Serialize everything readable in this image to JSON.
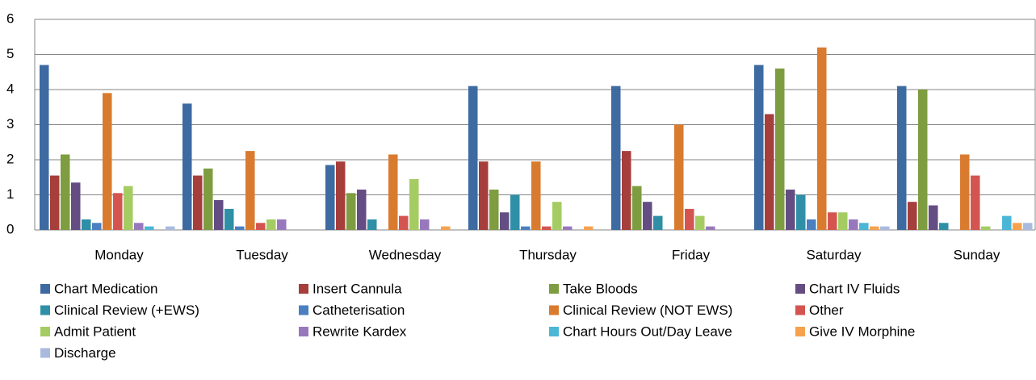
{
  "chart_data": {
    "type": "bar",
    "categories": [
      "Monday",
      "Tuesday",
      "Wednesday",
      "Thursday",
      "Friday",
      "Saturday",
      "Sunday"
    ],
    "series": [
      {
        "name": "Chart Medication",
        "color": "#3d6aa1",
        "values": [
          4.7,
          3.6,
          1.85,
          4.1,
          4.1,
          4.7,
          4.1
        ]
      },
      {
        "name": "Insert Cannula",
        "color": "#a63e3b",
        "values": [
          1.55,
          1.55,
          1.95,
          1.95,
          2.25,
          3.3,
          0.8
        ]
      },
      {
        "name": "Take Bloods",
        "color": "#7e9d40",
        "values": [
          2.15,
          1.75,
          1.05,
          1.15,
          1.25,
          4.6,
          4.0
        ]
      },
      {
        "name": "Chart IV Fluids",
        "color": "#644d83",
        "values": [
          1.35,
          0.85,
          1.15,
          0.5,
          0.8,
          1.15,
          0.7
        ]
      },
      {
        "name": "Clinical Review (+EWS)",
        "color": "#2e8fa7",
        "values": [
          0.3,
          0.6,
          0.3,
          1.0,
          0.4,
          1.0,
          0.2
        ]
      },
      {
        "name": "Catheterisation",
        "color": "#4a7fc0",
        "values": [
          0.2,
          0.1,
          0,
          0.1,
          0,
          0.3,
          0
        ]
      },
      {
        "name": "Clinical Review (NOT EWS)",
        "color": "#d97b2f",
        "values": [
          3.9,
          2.25,
          2.15,
          1.95,
          3.0,
          5.2,
          2.15
        ]
      },
      {
        "name": "Other",
        "color": "#d45450",
        "values": [
          1.05,
          0.2,
          0.4,
          0.1,
          0.6,
          0.5,
          1.55
        ]
      },
      {
        "name": "Admit Patient",
        "color": "#a5cc62",
        "values": [
          1.25,
          0.3,
          1.45,
          0.8,
          0.4,
          0.5,
          0.1
        ]
      },
      {
        "name": "Rewrite Kardex",
        "color": "#9878bd",
        "values": [
          0.2,
          0.3,
          0.3,
          0.1,
          0.1,
          0.3,
          0
        ]
      },
      {
        "name": "Chart Hours Out/Day Leave",
        "color": "#4bb6d6",
        "values": [
          0.1,
          0,
          0,
          0,
          0,
          0.2,
          0.4
        ]
      },
      {
        "name": "Give IV Morphine",
        "color": "#f7a14f",
        "values": [
          0,
          0,
          0.1,
          0.1,
          0,
          0.1,
          0.2
        ]
      },
      {
        "name": "Discharge",
        "color": "#a9badf",
        "values": [
          0.1,
          0,
          0,
          0,
          0,
          0.1,
          0.2
        ]
      }
    ],
    "ylim": [
      0,
      6
    ],
    "yticks": [
      0,
      1,
      2,
      3,
      4,
      5,
      6
    ],
    "grid": true,
    "legend": "bottom"
  }
}
